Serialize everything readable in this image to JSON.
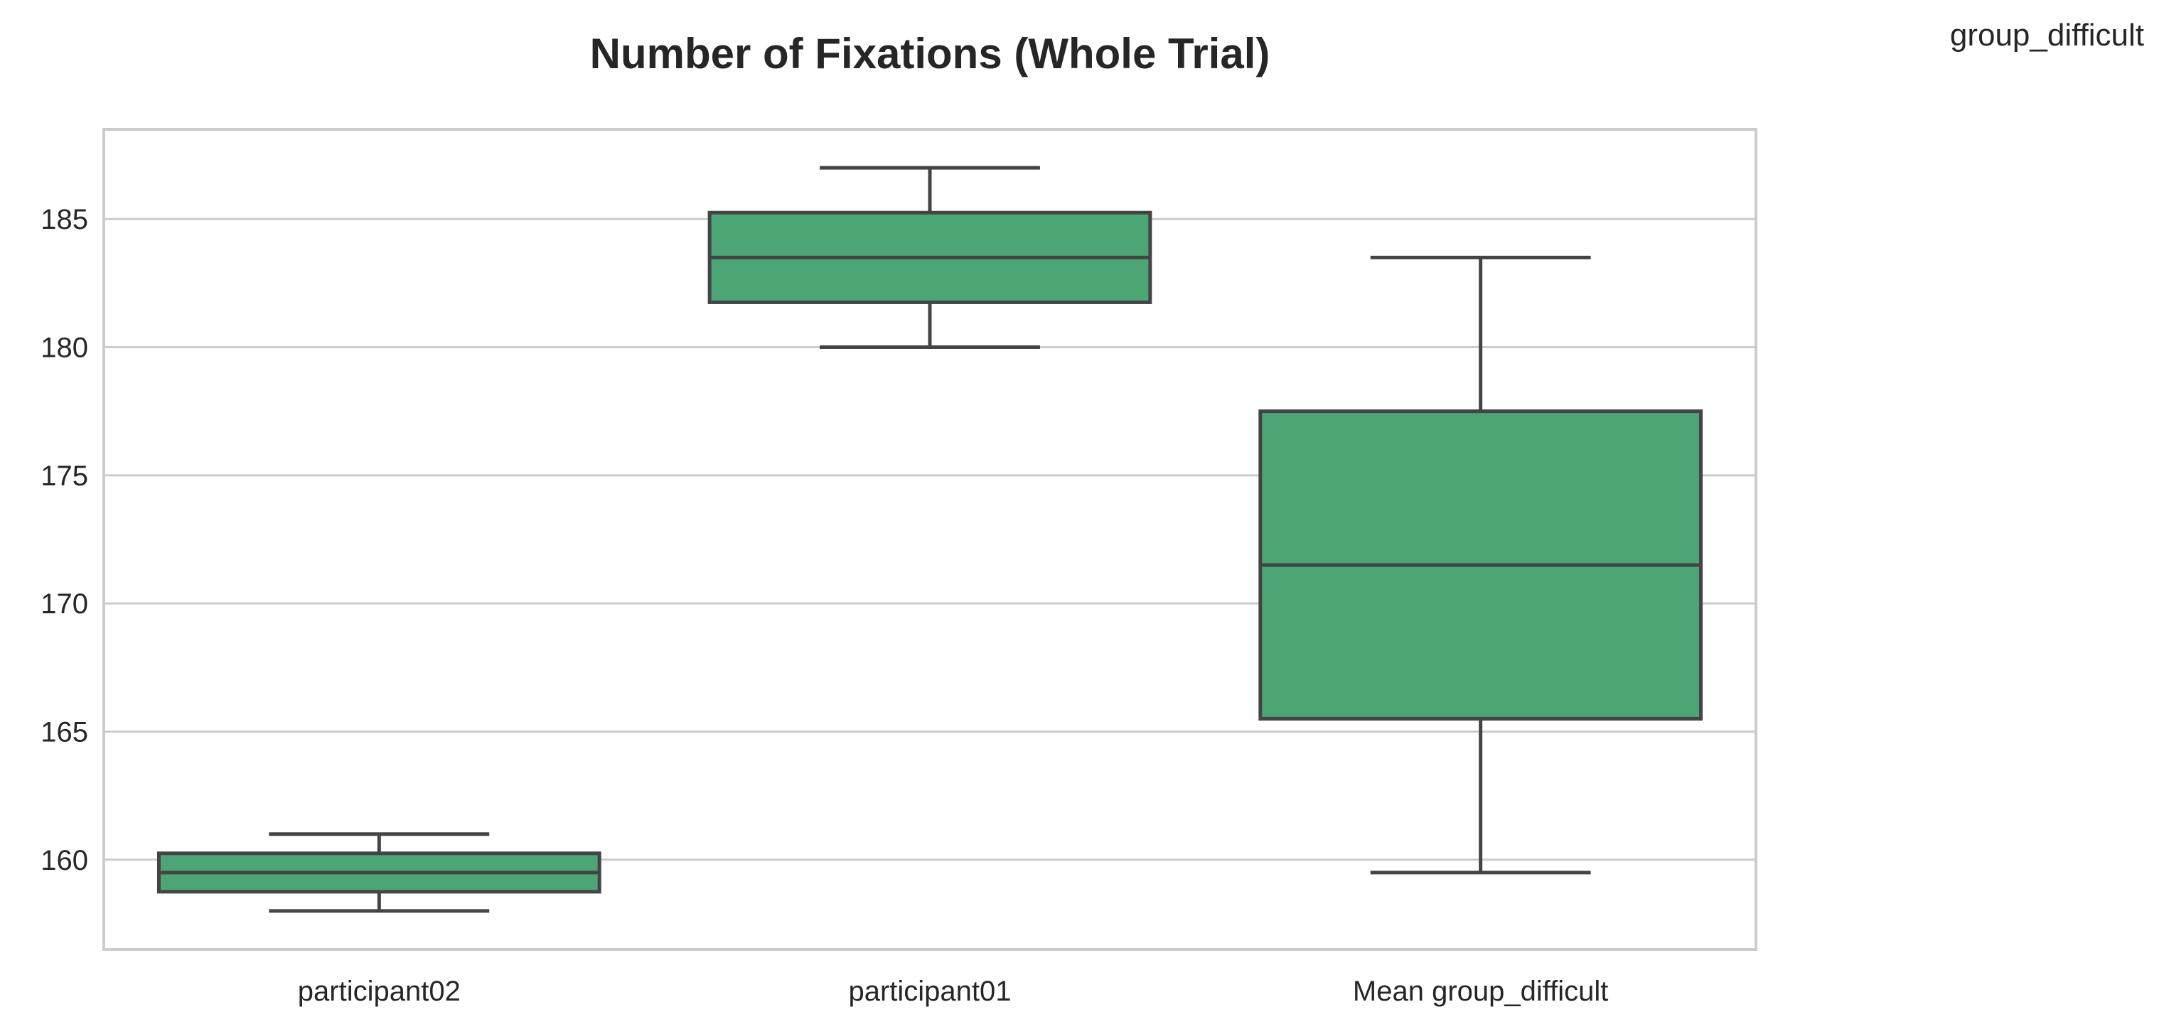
{
  "legend_text": "group_difficult",
  "colors": {
    "box_fill": "#4ba574",
    "box_edge": "#444444",
    "grid": "#cccccc",
    "text": "#262626"
  },
  "chart_data": {
    "type": "box",
    "title": "Number of Fixations (Whole Trial)",
    "xlabel": "",
    "ylabel": "",
    "ylim": [
      156.5,
      188.5
    ],
    "yticks": [
      160,
      165,
      170,
      175,
      180,
      185
    ],
    "grid": "horizontal",
    "categories": [
      "participant02",
      "participant01",
      "Mean group_difficult"
    ],
    "boxes": [
      {
        "category": "participant02",
        "whisker_low": 158.0,
        "q1": 158.75,
        "median": 159.5,
        "q3": 160.25,
        "whisker_high": 161.0
      },
      {
        "category": "participant01",
        "whisker_low": 180.0,
        "q1": 181.75,
        "median": 183.5,
        "q3": 185.25,
        "whisker_high": 187.0
      },
      {
        "category": "Mean group_difficult",
        "whisker_low": 159.5,
        "q1": 165.5,
        "median": 171.5,
        "q3": 177.5,
        "whisker_high": 183.5
      }
    ]
  }
}
